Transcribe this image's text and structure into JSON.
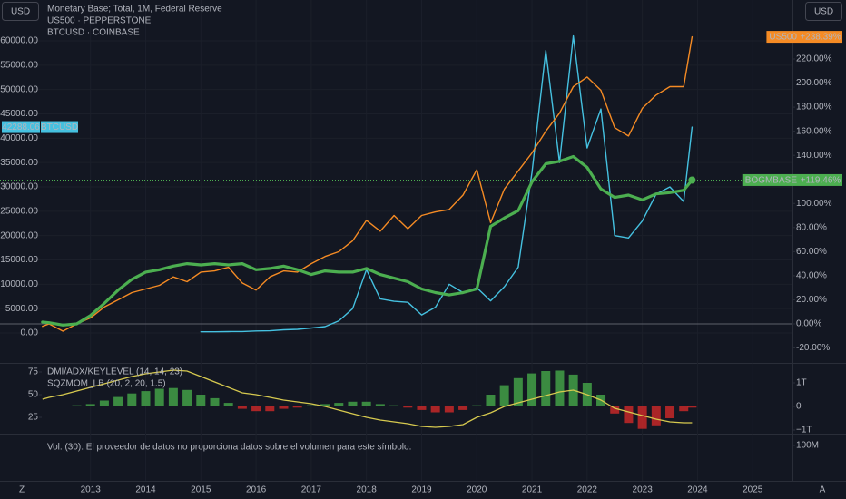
{
  "toolbar": {
    "left": "Z",
    "right": "A"
  },
  "chart_data": [
    {
      "type": "line",
      "legend": [
        "Monetary Base; Total, 1M, Federal Reserve",
        "US500 · PEPPERSTONE",
        "BTCUSD · COINBASE"
      ],
      "ylabel": "USD",
      "y2label": "USD",
      "x": [
        2012.13,
        2012.25,
        2012.5,
        2012.75,
        2013,
        2013.25,
        2013.5,
        2013.75,
        2014,
        2014.25,
        2014.5,
        2014.75,
        2015,
        2015.25,
        2015.5,
        2015.75,
        2016,
        2016.25,
        2016.5,
        2016.75,
        2017,
        2017.25,
        2017.5,
        2017.75,
        2018,
        2018.25,
        2018.5,
        2018.75,
        2019,
        2019.25,
        2019.5,
        2019.75,
        2020,
        2020.25,
        2020.5,
        2020.75,
        2021,
        2021.25,
        2021.5,
        2021.75,
        2022,
        2022.25,
        2022.5,
        2022.75,
        2023,
        2023.25,
        2023.5,
        2023.75,
        2023.9
      ],
      "xlim": [
        2011.36,
        2025.72
      ],
      "xticks": [
        2013,
        2014,
        2015,
        2016,
        2017,
        2018,
        2019,
        2020,
        2021,
        2022,
        2023,
        2024,
        2025
      ],
      "ylim": [
        -6150,
        68385
      ],
      "yticks": [
        {
          "value": 0,
          "label": "0.00"
        },
        {
          "value": 5000,
          "label": "5000.00"
        },
        {
          "value": 10000,
          "label": "10000.00"
        },
        {
          "value": 15000,
          "label": "15000.00"
        },
        {
          "value": 20000,
          "label": "20000.00"
        },
        {
          "value": 25000,
          "label": "25000.00"
        },
        {
          "value": 30000,
          "label": "30000.00"
        },
        {
          "value": 35000,
          "label": "35000.00"
        },
        {
          "value": 40000,
          "label": "40000.00"
        },
        {
          "value": 45000,
          "label": "45000.00"
        },
        {
          "value": 50000,
          "label": "50000.00"
        },
        {
          "value": 55000,
          "label": "55000.00"
        },
        {
          "value": 60000,
          "label": "60000.00"
        }
      ],
      "y2lim": [
        -32.4,
        268.97
      ],
      "y2ticks": [
        {
          "value": -20,
          "label": "-20.00%"
        },
        {
          "value": 0,
          "label": "0.00%"
        },
        {
          "value": 20,
          "label": "20.00%"
        },
        {
          "value": 40,
          "label": "40.00%"
        },
        {
          "value": 60,
          "label": "60.00%"
        },
        {
          "value": 80,
          "label": "80.00%"
        },
        {
          "value": 100,
          "label": "100.00%"
        },
        {
          "value": 120,
          "label": "120.00%"
        },
        {
          "value": 140,
          "label": "140.00%"
        },
        {
          "value": 160,
          "label": "160.00%"
        },
        {
          "value": 180,
          "label": "180.00%"
        },
        {
          "value": 200,
          "label": "200.00%"
        },
        {
          "value": 220,
          "label": "220.00%"
        }
      ],
      "grid": true,
      "zero_line": true,
      "series": [
        {
          "name": "BTCUSD",
          "color": "#45c1e0",
          "axis": "y",
          "width": 1.4,
          "values": [
            null,
            null,
            null,
            null,
            null,
            null,
            null,
            null,
            null,
            null,
            null,
            null,
            250,
            240,
            280,
            300,
            400,
            450,
            650,
            750,
            1000,
            1300,
            2500,
            5000,
            13000,
            7000,
            6500,
            6300,
            3700,
            5300,
            10000,
            8300,
            9300,
            6600,
            9500,
            13500,
            33000,
            58000,
            35000,
            61000,
            38000,
            46000,
            20000,
            19500,
            23000,
            28500,
            30000,
            27000,
            42288.06
          ]
        },
        {
          "name": "US500",
          "color": "#f58b24",
          "axis": "y2",
          "width": 1.4,
          "values": [
            -2,
            0,
            -6,
            0,
            5,
            14,
            20,
            26,
            29,
            32,
            39,
            35,
            43,
            44,
            47,
            34,
            28,
            39,
            44,
            43,
            50,
            56,
            60,
            69,
            86,
            77,
            90,
            79,
            90,
            93,
            95,
            107,
            128,
            84,
            112,
            127,
            142,
            160,
            175,
            197,
            205,
            194,
            163,
            156,
            179,
            190,
            197,
            197,
            238.39
          ],
          "value_labels": [
            null,
            null,
            null,
            null,
            null,
            null,
            null,
            null,
            null,
            null,
            null,
            null,
            null,
            null,
            null,
            null,
            null,
            null,
            null,
            null,
            null,
            null,
            null,
            null,
            null,
            null,
            null,
            null,
            null,
            null,
            null,
            null,
            null,
            null,
            null,
            null,
            null,
            null,
            null,
            null,
            null,
            null,
            null,
            null,
            null,
            null,
            null,
            null,
            "+238.39%"
          ]
        },
        {
          "name": "BOGMBASE",
          "color": "#4caf50",
          "axis": "y2",
          "width": 3.2,
          "price_line": true,
          "end_marker": true,
          "values": [
            1.5,
            1,
            -1,
            0,
            7,
            17,
            28,
            37,
            43,
            45,
            48,
            50,
            49,
            50,
            49,
            50,
            45,
            46,
            48,
            45,
            41,
            44,
            43,
            43,
            46,
            41,
            38,
            35,
            29,
            26,
            24,
            26,
            29,
            81,
            88,
            94,
            118,
            133,
            135,
            139,
            130,
            112,
            105,
            107,
            103,
            108,
            109,
            111,
            119.46
          ],
          "value_labels": [
            null,
            null,
            null,
            null,
            null,
            null,
            null,
            null,
            null,
            null,
            null,
            null,
            null,
            null,
            null,
            null,
            null,
            null,
            null,
            null,
            null,
            null,
            null,
            null,
            null,
            null,
            null,
            null,
            null,
            null,
            null,
            null,
            null,
            null,
            null,
            null,
            null,
            null,
            null,
            null,
            null,
            null,
            null,
            null,
            null,
            null,
            null,
            null,
            "+119.46%"
          ]
        }
      ]
    },
    {
      "type": "combo",
      "x": [
        2012.13,
        2012.25,
        2012.5,
        2012.75,
        2013,
        2013.25,
        2013.5,
        2013.75,
        2014,
        2014.25,
        2014.5,
        2014.75,
        2015,
        2015.25,
        2015.5,
        2015.75,
        2016,
        2016.25,
        2016.5,
        2016.75,
        2017,
        2017.25,
        2017.5,
        2017.75,
        2018,
        2018.25,
        2018.5,
        2018.75,
        2019,
        2019.25,
        2019.5,
        2019.75,
        2020,
        2020.25,
        2020.5,
        2020.75,
        2021,
        2021.25,
        2021.5,
        2021.75,
        2022,
        2022.25,
        2022.5,
        2022.75,
        2023,
        2023.25,
        2023.5,
        2023.75,
        2023.9
      ],
      "xlim": [
        2011.36,
        2025.72
      ],
      "ylim": [
        7,
        85
      ],
      "yticks": [
        25,
        50,
        75
      ],
      "y2lim": [
        -1154000000000.0,
        1846000000000.0
      ],
      "y2ticks": [
        {
          "value": 1000000000000.0,
          "label": "1T"
        },
        0,
        {
          "value": -1000000000000.0,
          "label": "−1T"
        }
      ],
      "series": [
        {
          "name": "DMI/ADX/KEYLEVEL (14, 14, 23)",
          "type": "line",
          "color": "#d6c94f",
          "axis": "y",
          "values": [
            45,
            47,
            50,
            54,
            58,
            62,
            66,
            70,
            73,
            75,
            77,
            76,
            70,
            64,
            58,
            52,
            50,
            47,
            44,
            42,
            40,
            37,
            33,
            29,
            25,
            22,
            20,
            18,
            15,
            14,
            15,
            17,
            25,
            30,
            37,
            41,
            45,
            49,
            53,
            55,
            50,
            44,
            35,
            31,
            27,
            23,
            20,
            19,
            19
          ]
        },
        {
          "name": "SQZMOM_LB (20, 2, 20, 1.5)",
          "type": "column",
          "color": "#43a047",
          "negative_color": "#c62828",
          "axis": "y2",
          "values": [
            20000000000.0,
            30000000000.0,
            30000000000.0,
            50000000000.0,
            100000000000.0,
            250000000000.0,
            400000000000.0,
            550000000000.0,
            650000000000.0,
            750000000000.0,
            780000000000.0,
            700000000000.0,
            500000000000.0,
            350000000000.0,
            150000000000.0,
            -100000000000.0,
            -200000000000.0,
            -200000000000.0,
            -100000000000.0,
            -50000000000.0,
            50000000000.0,
            100000000000.0,
            150000000000.0,
            200000000000.0,
            200000000000.0,
            100000000000.0,
            50000000000.0,
            -50000000000.0,
            -150000000000.0,
            -250000000000.0,
            -250000000000.0,
            -150000000000.0,
            50000000000.0,
            500000000000.0,
            900000000000.0,
            1200000000000.0,
            1400000000000.0,
            1500000000000.0,
            1520000000000.0,
            1350000000000.0,
            1000000000000.0,
            500000000000.0,
            -300000000000.0,
            -700000000000.0,
            -950000000000.0,
            -800000000000.0,
            -500000000000.0,
            -200000000000.0,
            -50000000000.0
          ]
        }
      ]
    },
    {
      "type": "volume",
      "message": "Vol. (30): El proveedor de datos no proporciona datos sobre el volumen para este símbolo.",
      "yaxis_side": "right",
      "ylim": [
        0,
        133300000
      ],
      "yticks": [
        {
          "value": 100000000,
          "label": "100M"
        }
      ]
    }
  ]
}
